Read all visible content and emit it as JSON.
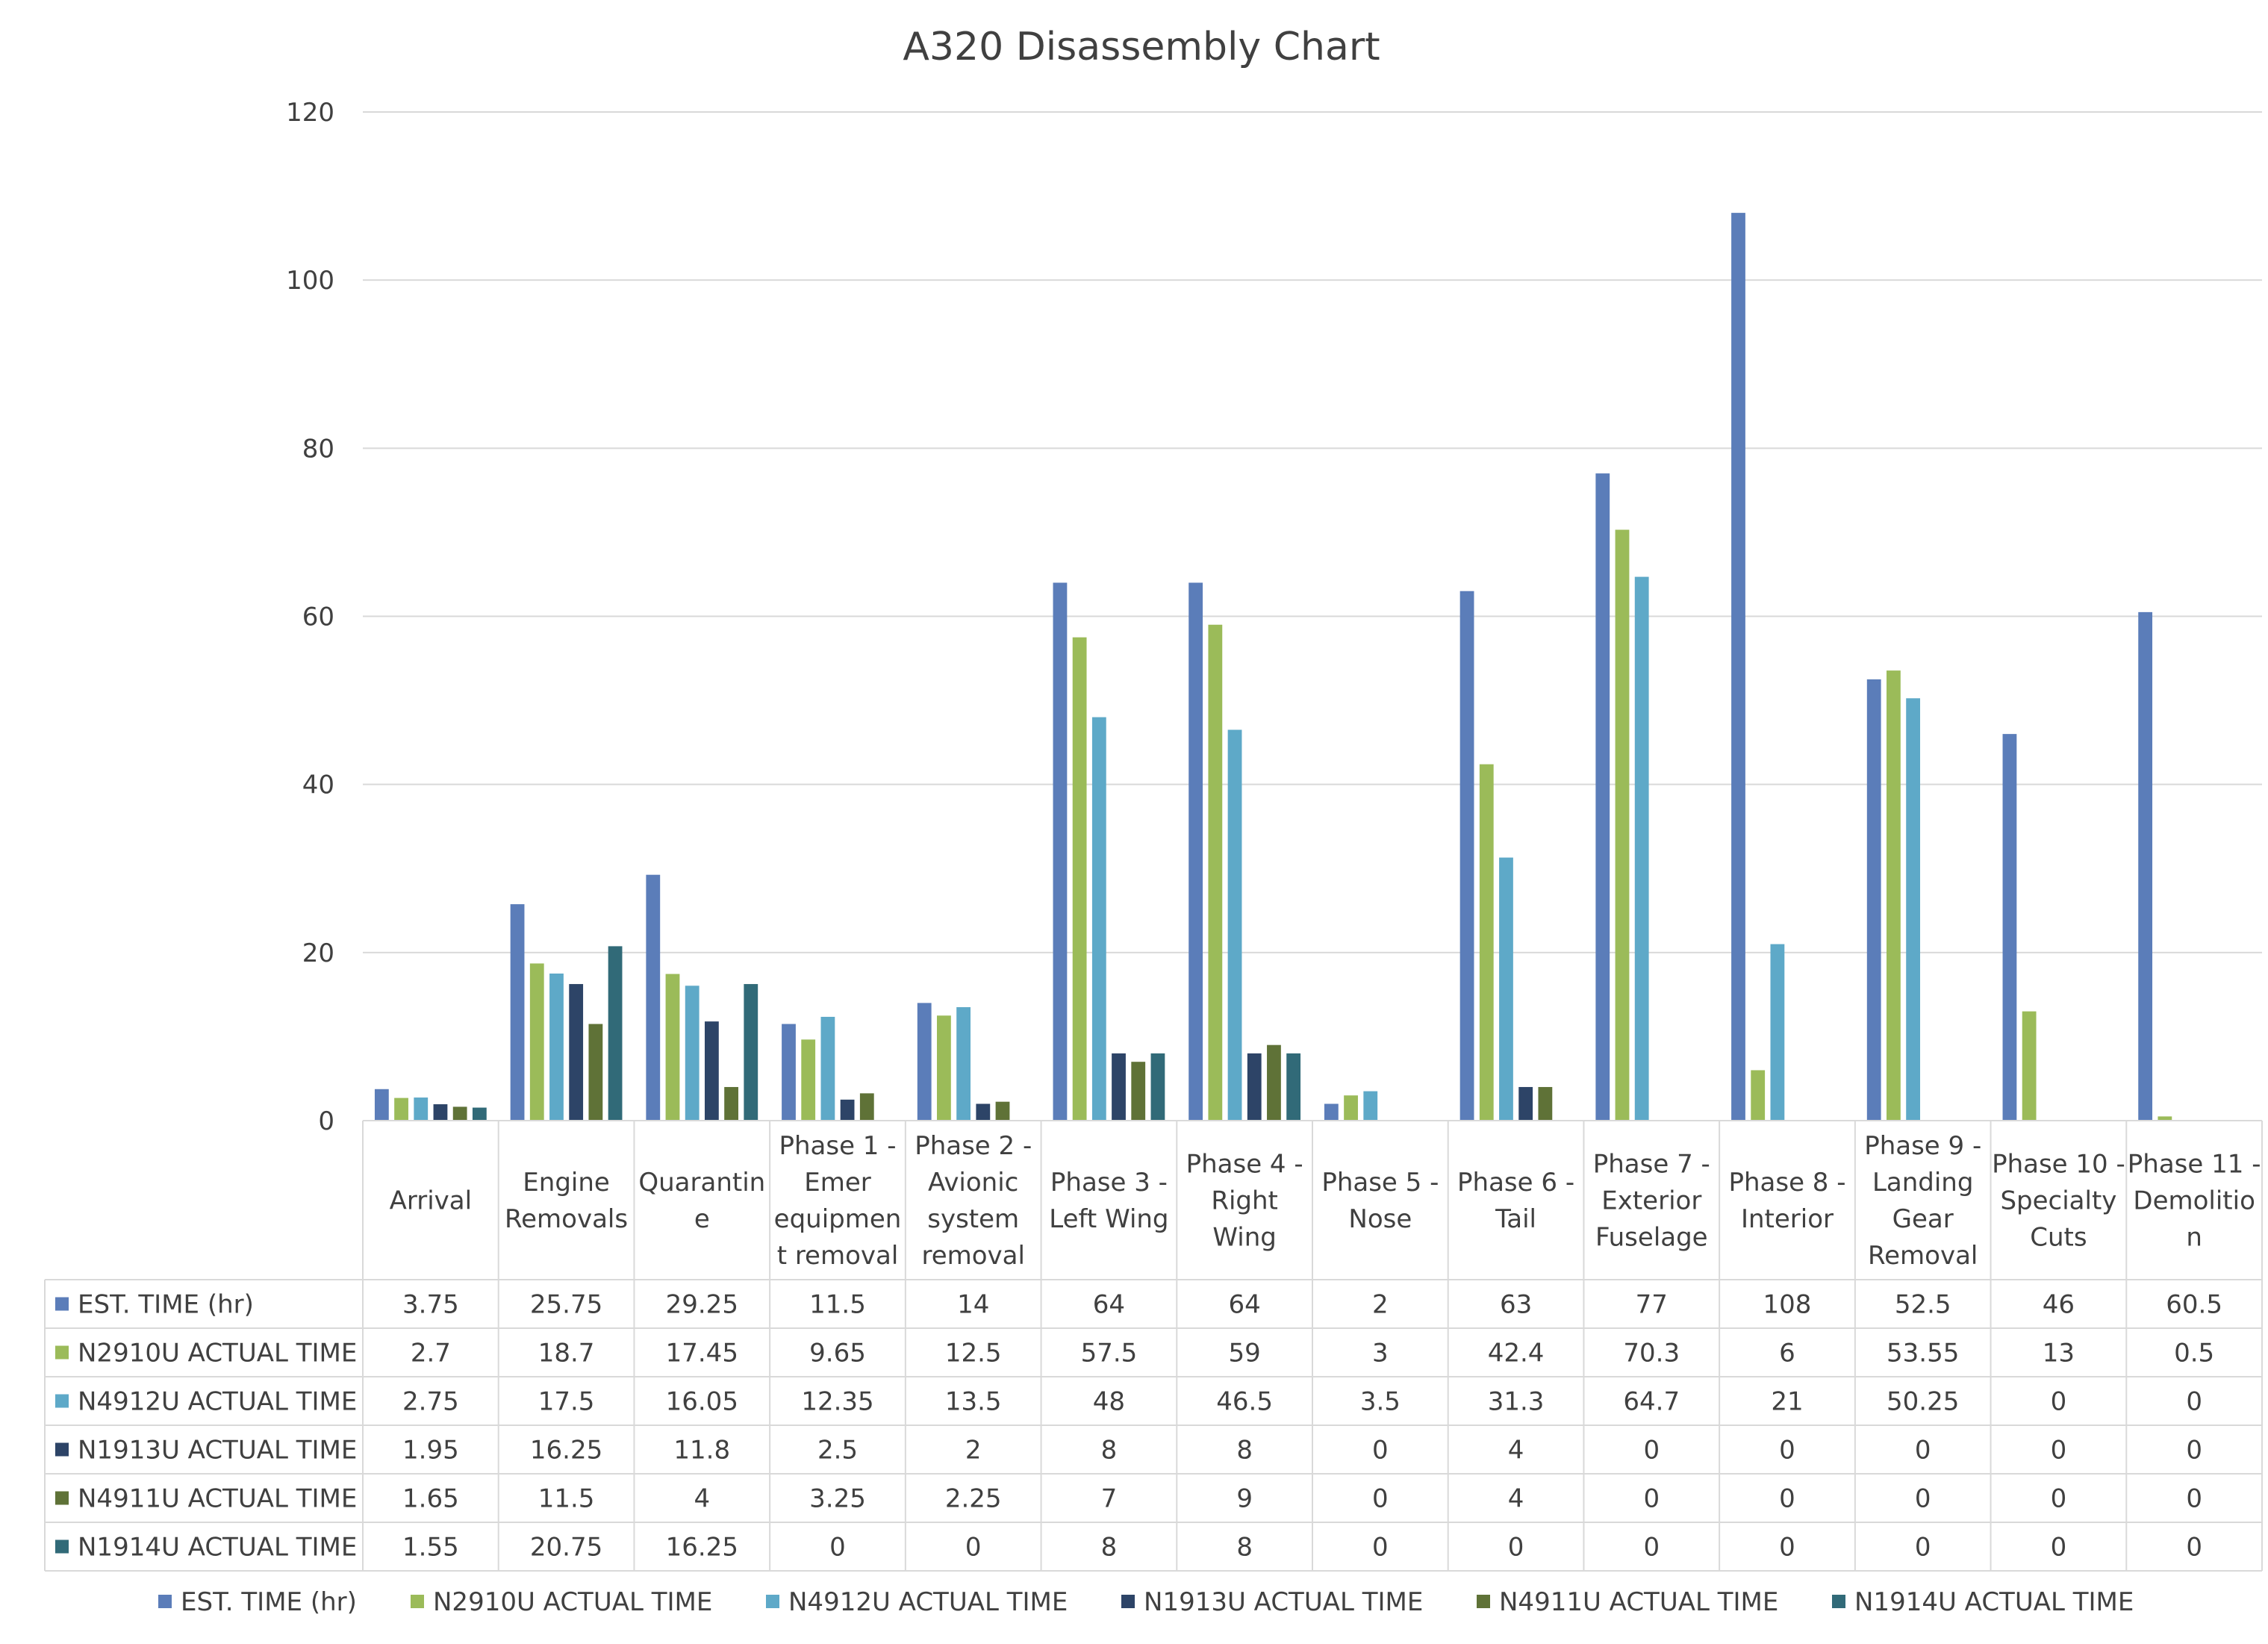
{
  "chart_data": {
    "type": "bar",
    "title": "A320 Disassembly Chart",
    "xlabel": "",
    "ylabel": "",
    "ylim": [
      0,
      120
    ],
    "yticks": [
      0,
      20,
      40,
      60,
      80,
      100,
      120
    ],
    "grid": true,
    "legend_position": "bottom",
    "data_table": true,
    "categories": [
      "Arrival",
      "Engine Removals",
      "Quarantine",
      "Phase 1 - Emer equipment removal",
      "Phase 2 - Avionic system removal",
      "Phase 3 - Left Wing",
      "Phase 4 - Right Wing",
      "Phase 5 - Nose",
      "Phase 6 - Tail",
      "Phase 7 - Exterior Fuselage",
      "Phase 8 - Interior",
      "Phase 9 - Landing Gear Removal",
      "Phase 10 - Specialty Cuts",
      "Phase 11 - Demolition"
    ],
    "category_lines": [
      [
        "Arrival"
      ],
      [
        "Engine",
        "Removals"
      ],
      [
        "Quarantin",
        "e"
      ],
      [
        "Phase 1 -",
        "Emer",
        "equipmen",
        "t removal"
      ],
      [
        "Phase 2 -",
        "Avionic",
        "system",
        "removal"
      ],
      [
        "Phase 3 -",
        "Left Wing"
      ],
      [
        "Phase 4 -",
        "Right",
        "Wing"
      ],
      [
        "Phase 5 -",
        "Nose"
      ],
      [
        "Phase 6 -",
        "Tail"
      ],
      [
        "Phase 7 -",
        "Exterior",
        "Fuselage"
      ],
      [
        "Phase 8 -",
        "Interior"
      ],
      [
        "Phase 9 -",
        "Landing",
        "Gear",
        "Removal"
      ],
      [
        "Phase 10 -",
        "Specialty",
        "Cuts"
      ],
      [
        "Phase 11 -",
        "Demolitio",
        "n"
      ]
    ],
    "series": [
      {
        "name": "EST. TIME (hr)",
        "color": "#5B7DB9",
        "values": [
          3.75,
          25.75,
          29.25,
          11.5,
          14,
          64,
          64,
          2,
          63,
          77,
          108,
          52.5,
          46,
          60.5
        ],
        "labels": [
          "3.75",
          "25.75",
          "29.25",
          "11.5",
          "14",
          "64",
          "64",
          "2",
          "63",
          "77",
          "108",
          "52.5",
          "46",
          "60.5"
        ]
      },
      {
        "name": "N2910U ACTUAL TIME",
        "color": "#9BBB59",
        "values": [
          2.7,
          18.7,
          17.45,
          9.65,
          12.5,
          57.5,
          59,
          3,
          42.4,
          70.3,
          6,
          53.55,
          13,
          0.5
        ],
        "labels": [
          "2.7",
          "18.7",
          "17.45",
          "9.65",
          "12.5",
          "57.5",
          "59",
          "3",
          "42.4",
          "70.3",
          "6",
          "53.55",
          "13",
          "0.5"
        ]
      },
      {
        "name": "N4912U ACTUAL TIME",
        "color": "#5EA9C8",
        "values": [
          2.75,
          17.5,
          16.05,
          12.35,
          13.5,
          48,
          46.5,
          3.5,
          31.3,
          64.7,
          21,
          50.25,
          0,
          0
        ],
        "labels": [
          "2.75",
          "17.5",
          "16.05",
          "12.35",
          "13.5",
          "48",
          "46.5",
          "3.5",
          "31.3",
          "64.7",
          "21",
          "50.25",
          "0",
          "0"
        ]
      },
      {
        "name": "N1913U ACTUAL TIME",
        "color": "#2D4467",
        "values": [
          1.95,
          16.25,
          11.8,
          2.5,
          2,
          8,
          8,
          0,
          4,
          0,
          0,
          0,
          0,
          0
        ],
        "labels": [
          "1.95",
          "16.25",
          "11.8",
          "2.5",
          "2",
          "8",
          "8",
          "0",
          "4",
          "0",
          "0",
          "0",
          "0",
          "0"
        ]
      },
      {
        "name": "N4911U ACTUAL TIME",
        "color": "#5F7237",
        "values": [
          1.65,
          11.5,
          4,
          3.25,
          2.25,
          7,
          9,
          0,
          4,
          0,
          0,
          0,
          0,
          0
        ],
        "labels": [
          "1.65",
          "11.5",
          "4",
          "3.25",
          "2.25",
          "7",
          "9",
          "0",
          "4",
          "0",
          "0",
          "0",
          "0",
          "0"
        ]
      },
      {
        "name": "N1914U ACTUAL TIME",
        "color": "#316A78",
        "values": [
          1.55,
          20.75,
          16.25,
          0,
          0,
          8,
          8,
          0,
          0,
          0,
          0,
          0,
          0,
          0
        ],
        "labels": [
          "1.55",
          "20.75",
          "16.25",
          "0",
          "0",
          "8",
          "8",
          "0",
          "0",
          "0",
          "0",
          "0",
          "0",
          "0"
        ]
      }
    ]
  }
}
